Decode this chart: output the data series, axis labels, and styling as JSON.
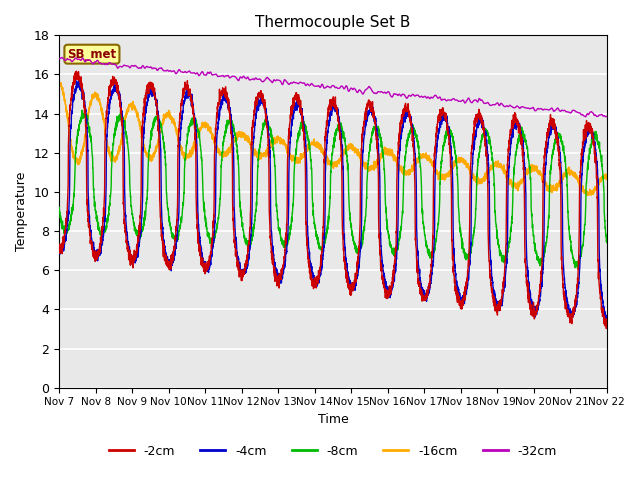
{
  "title": "Thermocouple Set B",
  "xlabel": "Time",
  "ylabel": "Temperature",
  "ylim": [
    0,
    18
  ],
  "legend_labels": [
    "-2cm",
    "-4cm",
    "-8cm",
    "-16cm",
    "-32cm"
  ],
  "legend_colors": [
    "#cc0000",
    "#0000cc",
    "#00bb00",
    "#ffaa00",
    "#bb00bb"
  ],
  "sb_met_label": "SB_met",
  "sb_met_bg": "#ffff99",
  "sb_met_border": "#996600",
  "background_color": "#ffffff",
  "plot_bg_color": "#e8e8e8",
  "xtick_labels": [
    "Nov 7",
    "Nov 8",
    "Nov 9",
    "Nov 10",
    "Nov 11",
    "Nov 12",
    "Nov 13",
    "Nov 14",
    "Nov 15",
    "Nov 16",
    "Nov 17",
    "Nov 18",
    "Nov 19",
    "Nov 20",
    "Nov 21",
    "Nov 22"
  ]
}
